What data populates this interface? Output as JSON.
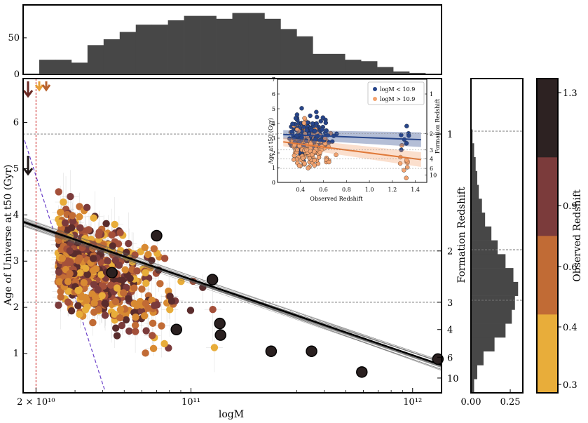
{
  "chart_data": {
    "type": "scatter",
    "main": {
      "xlabel": "logM",
      "ylabel": "Age of Universe at t50 (Gyr)",
      "x_scale": "log",
      "xlim": [
        17500000000,
        1350000000000
      ],
      "ylim": [
        0.15,
        6.95
      ],
      "x_tick_labels": [
        {
          "value": 20000000000,
          "label": "2 × 10¹⁰"
        },
        {
          "value": 100000000000,
          "label": "10¹¹"
        },
        {
          "value": 1000000000000,
          "label": "10¹²"
        }
      ],
      "y_ticks": [
        1,
        2,
        3,
        4,
        5,
        6
      ],
      "right_axis_label": "Formation Redshift",
      "right_ticks": [
        {
          "z": "1",
          "age": 5.75
        },
        {
          "z": "2",
          "age": 3.22
        },
        {
          "z": "3",
          "age": 2.11
        },
        {
          "z": "4",
          "age": 1.52
        },
        {
          "z": "6",
          "age": 0.92
        },
        {
          "z": "10",
          "age": 0.47
        }
      ],
      "fit_line": {
        "x0": 17500000000,
        "y0": 3.85,
        "x1": 1350000000000,
        "y1": 0.75
      },
      "vertical_line_x": 20000000000,
      "black_points": [
        {
          "x": 44000000000,
          "y": 2.75
        },
        {
          "x": 70000000000,
          "y": 3.55
        },
        {
          "x": 86000000000,
          "y": 1.52
        },
        {
          "x": 125000000000,
          "y": 2.6
        },
        {
          "x": 135000000000,
          "y": 1.65
        },
        {
          "x": 136000000000,
          "y": 1.4
        },
        {
          "x": 230000000000,
          "y": 1.05
        },
        {
          "x": 350000000000,
          "y": 1.05
        },
        {
          "x": 590000000000,
          "y": 0.6
        },
        {
          "x": 1300000000000,
          "y": 0.88
        }
      ]
    },
    "top_histogram": {
      "y_ticks": [
        0,
        50
      ],
      "ylim": [
        0,
        95
      ],
      "counts": [
        0,
        20,
        20,
        16,
        40,
        48,
        58,
        68,
        68,
        74,
        80,
        80,
        76,
        84,
        84,
        76,
        62,
        52,
        28,
        28,
        20,
        18,
        10,
        4,
        2,
        0
      ]
    },
    "right_histogram": {
      "xlabel": "Formation Redshift",
      "x_ticks": [
        "0.00",
        "0.25"
      ],
      "xlim": [
        0,
        0.33
      ],
      "bin_edges_age": [
        0.15,
        0.45,
        0.75,
        1.05,
        1.35,
        1.65,
        1.95,
        2.25,
        2.55,
        2.85,
        3.15,
        3.45,
        3.75,
        4.05,
        4.35,
        4.65,
        4.95,
        5.25,
        5.55,
        5.85
      ],
      "density": [
        0.02,
        0.04,
        0.08,
        0.15,
        0.22,
        0.26,
        0.28,
        0.3,
        0.27,
        0.22,
        0.17,
        0.13,
        0.09,
        0.07,
        0.05,
        0.04,
        0.03,
        0.02,
        0.01
      ]
    },
    "colorbar": {
      "label": "Observed Redshift",
      "tick_labels": [
        "0.3",
        "0.4",
        "0.6",
        "0.9",
        "1.3"
      ],
      "segments": [
        "#e8ad3a",
        "#c16b35",
        "#7b3b3b",
        "#2d2222"
      ]
    },
    "inset": {
      "xlabel": "Observed Redshift",
      "ylabel": "Age at t50 (Gyr)",
      "right_label": "Formation Redshift",
      "xlim": [
        0.2,
        1.5
      ],
      "ylim": [
        0,
        7
      ],
      "x_ticks": [
        "0.4",
        "0.6",
        "0.8",
        "1.0",
        "1.2",
        "1.4"
      ],
      "y_ticks": [
        "0",
        "1",
        "2",
        "3",
        "4",
        "5",
        "6",
        "7"
      ],
      "right_ticks": [
        "1",
        "2",
        "3",
        "4",
        "6",
        "10"
      ],
      "series": [
        {
          "name": "logM < 10.9",
          "color": "#27458a",
          "fit": [
            [
              0.25,
              3.25
            ],
            [
              1.45,
              2.9
            ]
          ]
        },
        {
          "name": "logM > 10.9",
          "color": "#f3a36f",
          "fit": [
            [
              0.25,
              2.75
            ],
            [
              1.45,
              1.55
            ]
          ]
        }
      ]
    }
  }
}
